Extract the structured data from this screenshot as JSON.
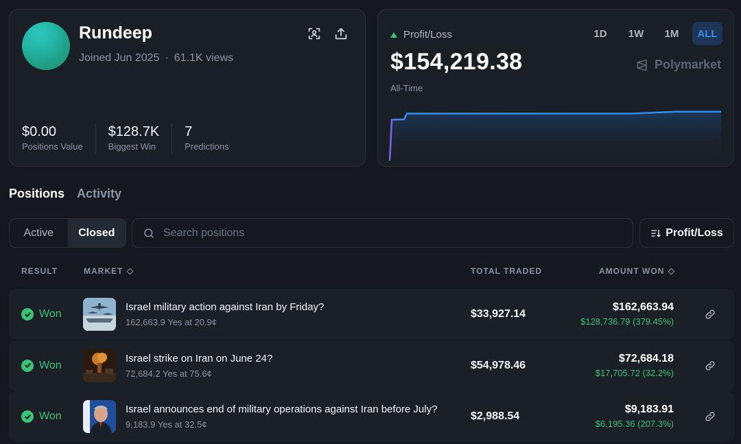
{
  "profile": {
    "name": "Rundeep",
    "joined": "Joined Jun 2025",
    "separator": "·",
    "views": "61.1K views",
    "stats": [
      {
        "value": "$0.00",
        "label": "Positions Value"
      },
      {
        "value": "$128.7K",
        "label": "Biggest Win"
      },
      {
        "value": "7",
        "label": "Predictions"
      }
    ]
  },
  "pnl": {
    "label": "Profit/Loss",
    "value": "$154,219.38",
    "period": "All-Time",
    "ranges": [
      "1D",
      "1W",
      "1M",
      "ALL"
    ],
    "active_range": "ALL",
    "brand": "Polymarket",
    "accent": "#3b8cf0",
    "positive_color": "#3cc37a"
  },
  "chart_data": {
    "type": "area",
    "title": "",
    "xlabel": "",
    "ylabel": "",
    "x": [
      0,
      1,
      2,
      3,
      4,
      5,
      6,
      7,
      8,
      9,
      10
    ],
    "values": [
      0,
      128736.79,
      130000,
      148000,
      148000,
      148000,
      148000,
      148000,
      148000,
      154219.38,
      154219.38
    ],
    "ylim": [
      0,
      160000
    ],
    "grid": false
  },
  "tabs": {
    "items": [
      "Positions",
      "Activity"
    ],
    "active": "Positions"
  },
  "filter": {
    "options": [
      "Active",
      "Closed"
    ],
    "active": "Closed"
  },
  "search": {
    "placeholder": "Search positions"
  },
  "sort": {
    "label": "Profit/Loss"
  },
  "table": {
    "headers": {
      "result": "RESULT",
      "market": "MARKET",
      "total_traded": "TOTAL TRADED",
      "amount_won": "AMOUNT WON"
    },
    "rows": [
      {
        "result": "Won",
        "title": "Israel military action against Iran by Friday?",
        "subtitle": "162,663.9 Yes at 20.9¢",
        "total_traded": "$33,927.14",
        "amount_won": "$162,663.94",
        "profit": "$128,736.79 (379.45%)"
      },
      {
        "result": "Won",
        "title": "Israel strike on Iran on June 24?",
        "subtitle": "72,684.2 Yes at 75.6¢",
        "total_traded": "$54,978.46",
        "amount_won": "$72,684.18",
        "profit": "$17,705.72 (32.2%)"
      },
      {
        "result": "Won",
        "title": "Israel announces end of military operations against Iran before July?",
        "subtitle": "9,183.9 Yes at 32.5¢",
        "total_traded": "$2,988.54",
        "amount_won": "$9,183.91",
        "profit": "$6,195.36 (207.3%)"
      }
    ]
  }
}
